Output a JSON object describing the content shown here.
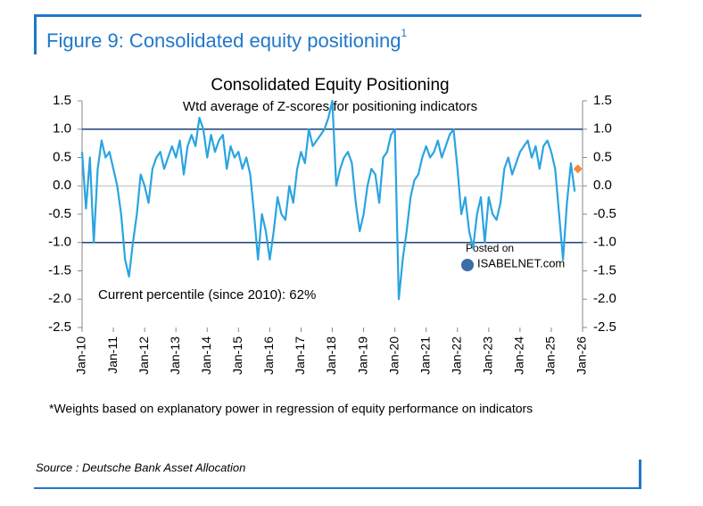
{
  "header": {
    "title": "Figure 9: Consolidated equity positioning",
    "superscript": "1"
  },
  "chart_data": {
    "type": "line",
    "title": "Consolidated Equity Positioning",
    "subtitle": "Wtd average of Z-scores for positioning indicators",
    "annotation": "Current percentile (since 2010): 62%",
    "watermark": [
      "Posted on",
      "ISABELNET.com"
    ],
    "xlim": [
      2010,
      2026
    ],
    "xticks": [
      {
        "value": 2010,
        "label": "Jan-10"
      },
      {
        "value": 2011,
        "label": "Jan-11"
      },
      {
        "value": 2012,
        "label": "Jan-12"
      },
      {
        "value": 2013,
        "label": "Jan-13"
      },
      {
        "value": 2014,
        "label": "Jan-14"
      },
      {
        "value": 2015,
        "label": "Jan-15"
      },
      {
        "value": 2016,
        "label": "Jan-16"
      },
      {
        "value": 2017,
        "label": "Jan-17"
      },
      {
        "value": 2018,
        "label": "Jan-18"
      },
      {
        "value": 2019,
        "label": "Jan-19"
      },
      {
        "value": 2020,
        "label": "Jan-20"
      },
      {
        "value": 2021,
        "label": "Jan-21"
      },
      {
        "value": 2022,
        "label": "Jan-22"
      },
      {
        "value": 2023,
        "label": "Jan-23"
      },
      {
        "value": 2024,
        "label": "Jan-24"
      },
      {
        "value": 2025,
        "label": "Jan-25"
      },
      {
        "value": 2026,
        "label": "Jan-26"
      }
    ],
    "ylim": [
      -2.5,
      1.5
    ],
    "yticks": [
      1.5,
      {
        "value": 1,
        "label": "1.0"
      },
      0.5,
      {
        "value": 0,
        "label": "0.0"
      },
      -0.5,
      {
        "value": -1,
        "label": "-1.0"
      },
      -1.5,
      {
        "value": -2,
        "label": "-2.0"
      },
      -2.5
    ],
    "y2lim": [
      -2.5,
      1.5
    ],
    "y2ticks": [
      1.5,
      {
        "value": 1,
        "label": "1.0"
      },
      0.5,
      {
        "value": 0,
        "label": "0.0"
      },
      -0.5,
      {
        "value": -1,
        "label": "-1.0"
      },
      -1.5,
      {
        "value": -2,
        "label": "-2.0"
      },
      -2.5
    ],
    "reference_lines": [
      1,
      -1
    ],
    "x": [
      2010,
      2010.125,
      2010.25,
      2010.375,
      2010.5,
      2010.625,
      2010.75,
      2010.875,
      2011,
      2011.125,
      2011.25,
      2011.375,
      2011.5,
      2011.625,
      2011.75,
      2011.875,
      2012,
      2012.125,
      2012.25,
      2012.375,
      2012.5,
      2012.625,
      2012.75,
      2012.875,
      2013,
      2013.125,
      2013.25,
      2013.375,
      2013.5,
      2013.625,
      2013.75,
      2013.875,
      2014,
      2014.125,
      2014.25,
      2014.375,
      2014.5,
      2014.625,
      2014.75,
      2014.875,
      2015,
      2015.125,
      2015.25,
      2015.375,
      2015.5,
      2015.625,
      2015.75,
      2015.875,
      2016,
      2016.125,
      2016.25,
      2016.375,
      2016.5,
      2016.625,
      2016.75,
      2016.875,
      2017,
      2017.125,
      2017.25,
      2017.375,
      2017.5,
      2017.625,
      2017.75,
      2017.875,
      2018,
      2018.125,
      2018.25,
      2018.375,
      2018.5,
      2018.625,
      2018.75,
      2018.875,
      2019,
      2019.125,
      2019.25,
      2019.375,
      2019.5,
      2019.625,
      2019.75,
      2019.875,
      2020,
      2020.125,
      2020.25,
      2020.375,
      2020.5,
      2020.625,
      2020.75,
      2020.875,
      2021,
      2021.125,
      2021.25,
      2021.375,
      2021.5,
      2021.625,
      2021.75,
      2021.875,
      2022,
      2022.125,
      2022.25,
      2022.375,
      2022.5,
      2022.625,
      2022.75,
      2022.875,
      2023,
      2023.125,
      2023.25,
      2023.375,
      2023.5,
      2023.625,
      2023.75,
      2023.875,
      2024,
      2024.125,
      2024.25,
      2024.375,
      2024.5,
      2024.625,
      2024.75,
      2024.875,
      2025,
      2025.125,
      2025.25,
      2025.375,
      2025.5,
      2025.625,
      2025.75
    ],
    "series": [
      {
        "color": "#2aa4e0",
        "values": [
          0.6,
          -0.4,
          0.5,
          -1.0,
          0.3,
          0.8,
          0.5,
          0.6,
          0.3,
          0.0,
          -0.5,
          -1.3,
          -1.6,
          -1.0,
          -0.5,
          0.2,
          0.0,
          -0.3,
          0.3,
          0.5,
          0.6,
          0.3,
          0.5,
          0.7,
          0.5,
          0.8,
          0.2,
          0.7,
          0.9,
          0.7,
          1.2,
          1.0,
          0.5,
          0.9,
          0.6,
          0.8,
          0.9,
          0.3,
          0.7,
          0.5,
          0.6,
          0.3,
          0.5,
          0.2,
          -0.5,
          -1.3,
          -0.5,
          -0.8,
          -1.3,
          -0.8,
          -0.2,
          -0.5,
          -0.6,
          0.0,
          -0.3,
          0.3,
          0.6,
          0.4,
          1.0,
          0.7,
          0.8,
          0.9,
          1.0,
          1.2,
          1.5,
          0.0,
          0.3,
          0.5,
          0.6,
          0.4,
          -0.3,
          -0.8,
          -0.5,
          0.0,
          0.3,
          0.2,
          -0.3,
          0.5,
          0.6,
          0.9,
          1.0,
          -2.0,
          -1.3,
          -0.8,
          -0.2,
          0.1,
          0.2,
          0.5,
          0.7,
          0.5,
          0.6,
          0.8,
          0.5,
          0.7,
          0.9,
          1.0,
          0.3,
          -0.5,
          -0.2,
          -0.8,
          -1.1,
          -0.5,
          -0.2,
          -1.0,
          -0.2,
          -0.5,
          -0.6,
          -0.3,
          0.3,
          0.5,
          0.2,
          0.4,
          0.6,
          0.7,
          0.8,
          0.5,
          0.7,
          0.3,
          0.7,
          0.8,
          0.6,
          0.3,
          -0.5,
          -1.3,
          -0.3,
          0.4,
          -0.1
        ]
      }
    ],
    "current_point": {
      "x": 2025.85,
      "value": 0.3,
      "color": "#f08a3c"
    },
    "footnote": "*Weights based on explanatory power in regression of equity performance on indicators"
  },
  "source": "Source : Deutsche Bank Asset Allocation"
}
